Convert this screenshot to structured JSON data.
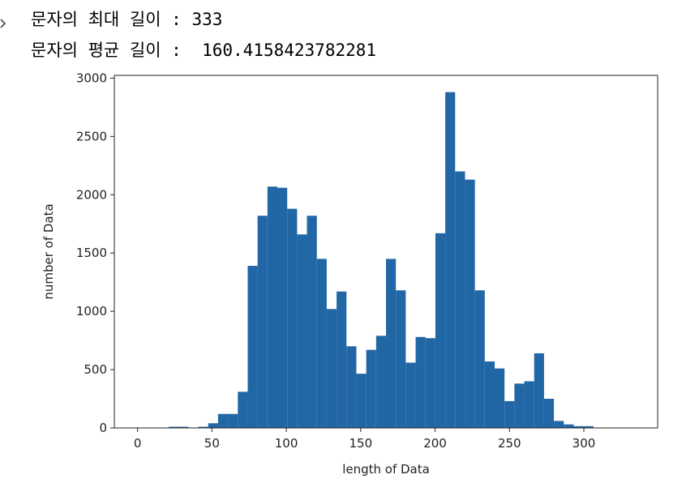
{
  "output_lines": [
    "문자의 최대 길이 : 333",
    "문자의 평균 길이 :  160.4158423782281"
  ],
  "chart_data": {
    "type": "histogram",
    "x_label": "length of Data",
    "y_label": "number of Data",
    "color": "#2166a5",
    "bins": [
      1,
      7.64,
      14.28,
      20.92,
      27.56,
      34.2,
      40.84,
      47.48,
      54.12,
      60.76,
      67.4,
      74.04,
      80.68,
      87.32,
      93.96,
      100.6,
      107.24,
      113.88,
      120.52,
      127.16,
      133.8,
      140.44,
      147.08,
      153.72,
      160.36,
      167,
      173.64,
      180.28,
      186.92,
      193.56,
      200.2,
      206.84,
      213.48,
      220.12,
      226.76,
      233.4,
      240.04,
      246.68,
      253.32,
      259.96,
      266.6,
      273.24,
      279.88,
      286.52,
      293.16,
      299.8,
      306.44,
      313.08,
      319.72,
      326.36,
      333
    ],
    "values": [
      0,
      0,
      0,
      10,
      10,
      0,
      10,
      40,
      120,
      120,
      310,
      1390,
      1820,
      2070,
      2060,
      1880,
      1660,
      1820,
      1450,
      1020,
      1170,
      700,
      465,
      670,
      790,
      1450,
      1180,
      560,
      780,
      770,
      1670,
      2880,
      2200,
      2130,
      1180,
      570,
      510,
      230,
      380,
      400,
      640,
      250,
      60,
      30,
      15,
      15,
      0,
      0,
      0,
      1
    ],
    "xlim": [
      -15.6,
      349.6
    ],
    "ylim": [
      0,
      3024
    ],
    "xticks": [
      0,
      50,
      100,
      150,
      200,
      250,
      300
    ],
    "yticks": [
      0,
      500,
      1000,
      1500,
      2000,
      2500,
      3000
    ]
  }
}
